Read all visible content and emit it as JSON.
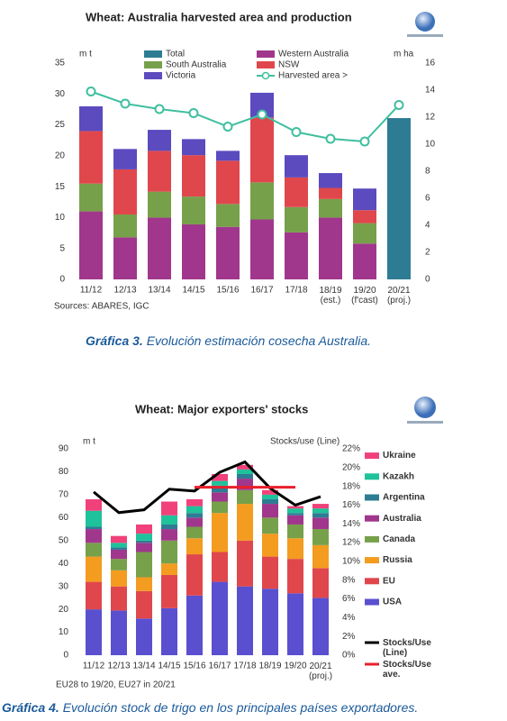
{
  "chart_data": [
    {
      "type": "bar",
      "stacked": true,
      "title": "Wheat: Australia harvested area and production",
      "y_label": "m t",
      "y2_label": "m ha",
      "note": "Sources: ABARES, IGC",
      "categories": [
        "11/12",
        "12/13",
        "13/14",
        "14/15",
        "15/16",
        "16/17",
        "17/18",
        "18/19\n(est.)",
        "19/20\n(f'cast)",
        "20/21\n(proj.)"
      ],
      "series": [
        {
          "name": "Western Australia",
          "color": "#a0378c",
          "values": [
            11,
            6.8,
            10,
            8.9,
            8.5,
            9.7,
            7.6,
            10,
            5.8,
            null
          ]
        },
        {
          "name": "South Australia",
          "color": "#77a04a",
          "values": [
            4.5,
            3.7,
            4.2,
            4.5,
            3.7,
            6,
            4.1,
            3,
            3.3,
            null
          ]
        },
        {
          "name": "NSW",
          "color": "#e0474c",
          "values": [
            8.5,
            7.3,
            6.6,
            6.7,
            7,
            10.5,
            4.8,
            1.8,
            2.1,
            null
          ]
        },
        {
          "name": "Victoria",
          "color": "#5b4bbf",
          "values": [
            4,
            3.3,
            3.4,
            2.6,
            1.6,
            4,
            3.6,
            2.4,
            3.5,
            null
          ]
        },
        {
          "name": "Total",
          "color": "#2e7c93",
          "values": [
            null,
            null,
            null,
            null,
            null,
            null,
            null,
            null,
            null,
            26.1
          ]
        },
        {
          "name": "Harvested area >",
          "color": "#3fbf9f",
          "type": "line",
          "axis": "y2",
          "marker": true,
          "values": [
            13.9,
            13,
            12.6,
            12.3,
            11.3,
            12.2,
            10.9,
            10.4,
            10.2,
            12.9
          ]
        }
      ],
      "ylim": [
        0,
        35
      ],
      "yticks": [
        0,
        5,
        10,
        15,
        20,
        25,
        30,
        35
      ],
      "y2lim": [
        0,
        16
      ],
      "y2ticks": [
        0,
        2,
        4,
        6,
        8,
        10,
        12,
        14,
        16
      ]
    },
    {
      "type": "bar",
      "stacked": true,
      "title": "Wheat: Major exporters' stocks",
      "y_label": "m t",
      "y2_label": "Stocks/use (Line)",
      "note": "EU28 to 19/20, EU27 in 20/21",
      "categories": [
        "11/12",
        "12/13",
        "13/14",
        "14/15",
        "15/16",
        "16/17",
        "17/18",
        "18/19",
        "19/20",
        "20/21\n(proj.)"
      ],
      "series": [
        {
          "name": "USA",
          "color": "#5a4fcf",
          "values": [
            20,
            19.5,
            16,
            20.5,
            26,
            32,
            30,
            29,
            27,
            25
          ]
        },
        {
          "name": "EU",
          "color": "#e0474c",
          "values": [
            12,
            10.5,
            12,
            14.5,
            18,
            13,
            20,
            14,
            15,
            13
          ]
        },
        {
          "name": "Russia",
          "color": "#f39c1f",
          "values": [
            11,
            7,
            6,
            5,
            7,
            17,
            16,
            10,
            9,
            10
          ]
        },
        {
          "name": "Canada",
          "color": "#77a04a",
          "values": [
            6,
            5,
            11,
            10,
            5,
            5,
            6,
            7,
            6,
            7
          ]
        },
        {
          "name": "Australia",
          "color": "#a0378c",
          "values": [
            6,
            4,
            4,
            5,
            4,
            4,
            5,
            6,
            4,
            5
          ]
        },
        {
          "name": "Argentina",
          "color": "#2e7c93",
          "values": [
            1,
            1,
            1,
            2,
            2,
            3,
            2,
            2,
            1,
            2
          ]
        },
        {
          "name": "Kazakh",
          "color": "#1fc29a",
          "values": [
            7,
            2,
            3,
            4,
            3,
            2,
            2,
            2,
            2,
            2
          ]
        },
        {
          "name": "Ukraine",
          "color": "#f0417a",
          "values": [
            5,
            3,
            4,
            6,
            3,
            3,
            2,
            2,
            1,
            2
          ]
        },
        {
          "name": "Stocks/Use\n(Line)",
          "color": "#000000",
          "type": "line",
          "axis": "y2",
          "values": [
            17.4,
            15.2,
            15.5,
            17.7,
            17.5,
            19.5,
            20.6,
            17.8,
            16,
            16.9
          ]
        },
        {
          "name": "Stocks/Use\nave.",
          "color": "#e8202a",
          "type": "line",
          "axis": "y2",
          "values": [
            null,
            null,
            null,
            null,
            17.9,
            17.9,
            17.9,
            17.9,
            17.9,
            null
          ]
        }
      ],
      "ylim": [
        0,
        90
      ],
      "yticks": [
        0,
        10,
        20,
        30,
        40,
        50,
        60,
        70,
        80,
        90
      ],
      "y2lim": [
        0,
        22
      ],
      "y2ticks": [
        {
          "value": 0,
          "label": "0%"
        },
        {
          "value": 2,
          "label": "2%"
        },
        {
          "value": 4,
          "label": "4%"
        },
        {
          "value": 6,
          "label": "6%"
        },
        {
          "value": 8,
          "label": "8%"
        },
        {
          "value": 10,
          "label": "10%"
        },
        {
          "value": 12,
          "label": "12%"
        },
        {
          "value": 14,
          "label": "14%"
        },
        {
          "value": 16,
          "label": "16%"
        },
        {
          "value": 18,
          "label": "18%"
        },
        {
          "value": 20,
          "label": "20%"
        },
        {
          "value": 22,
          "label": "22%"
        }
      ]
    }
  ],
  "captions": [
    {
      "label": "Gráfica 3.",
      "text": "Evolución estimación cosecha Australia."
    },
    {
      "label": "Gráfica 4.",
      "text": "Evolución stock de trigo en los principales países exportadores."
    }
  ]
}
